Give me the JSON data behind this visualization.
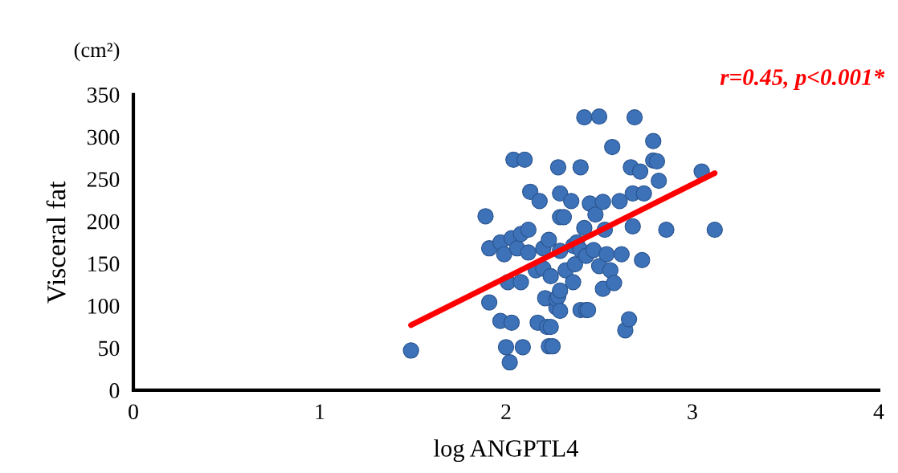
{
  "chart_data": {
    "type": "scatter",
    "xlabel": "log ANGPTL4",
    "ylabel": "Visceral fat",
    "xlim": [
      0,
      4
    ],
    "xticks": [
      0,
      1,
      2,
      3,
      4
    ],
    "ylim": [
      0,
      350
    ],
    "yticks": [
      0,
      50,
      100,
      150,
      200,
      250,
      300,
      350
    ],
    "grid": false,
    "legend": false,
    "annotations": [
      "(cm²)",
      "r=0.45, p<0.001*"
    ],
    "series": [
      {
        "marker": "circle",
        "color": "#3d72b8",
        "x": [
          1.49,
          1.89,
          1.91,
          1.91,
          1.97,
          1.97,
          1.99,
          2.0,
          2.01,
          2.02,
          2.03,
          2.03,
          2.04,
          2.06,
          2.08,
          2.08,
          2.09,
          2.1,
          2.12,
          2.12,
          2.13,
          2.16,
          2.17,
          2.18,
          2.2,
          2.2,
          2.21,
          2.22,
          2.23,
          2.23,
          2.24,
          2.24,
          2.25,
          2.27,
          2.27,
          2.28,
          2.28,
          2.29,
          2.29,
          2.29,
          2.29,
          2.29,
          2.31,
          2.32,
          2.35,
          2.36,
          2.36,
          2.37,
          2.38,
          2.4,
          2.4,
          2.4,
          2.42,
          2.42,
          2.43,
          2.43,
          2.44,
          2.45,
          2.47,
          2.48,
          2.5,
          2.5,
          2.52,
          2.52,
          2.53,
          2.54,
          2.56,
          2.57,
          2.58,
          2.61,
          2.62,
          2.64,
          2.66,
          2.67,
          2.68,
          2.68,
          2.69,
          2.72,
          2.73,
          2.74,
          2.79,
          2.79,
          2.81,
          2.82,
          2.86,
          3.05,
          3.12
        ],
        "values": [
          47,
          206,
          168,
          104,
          175,
          82,
          161,
          51,
          128,
          33,
          180,
          80,
          273,
          168,
          185,
          128,
          51,
          273,
          190,
          163,
          235,
          142,
          80,
          224,
          168,
          144,
          109,
          75,
          178,
          52,
          135,
          75,
          52,
          98,
          108,
          264,
          111,
          165,
          94,
          233,
          118,
          205,
          205,
          142,
          224,
          128,
          171,
          149,
          175,
          264,
          166,
          95,
          323,
          192,
          159,
          95,
          95,
          221,
          166,
          208,
          324,
          147,
          223,
          120,
          190,
          161,
          142,
          288,
          127,
          224,
          161,
          71,
          84,
          264,
          194,
          233,
          323,
          259,
          154,
          233,
          295,
          272,
          271,
          248,
          190,
          259,
          190
        ]
      },
      {
        "type": "line",
        "marker": "none",
        "color": "#ff0000",
        "x": [
          1.49,
          3.12
        ],
        "values": [
          77,
          257
        ]
      }
    ]
  }
}
